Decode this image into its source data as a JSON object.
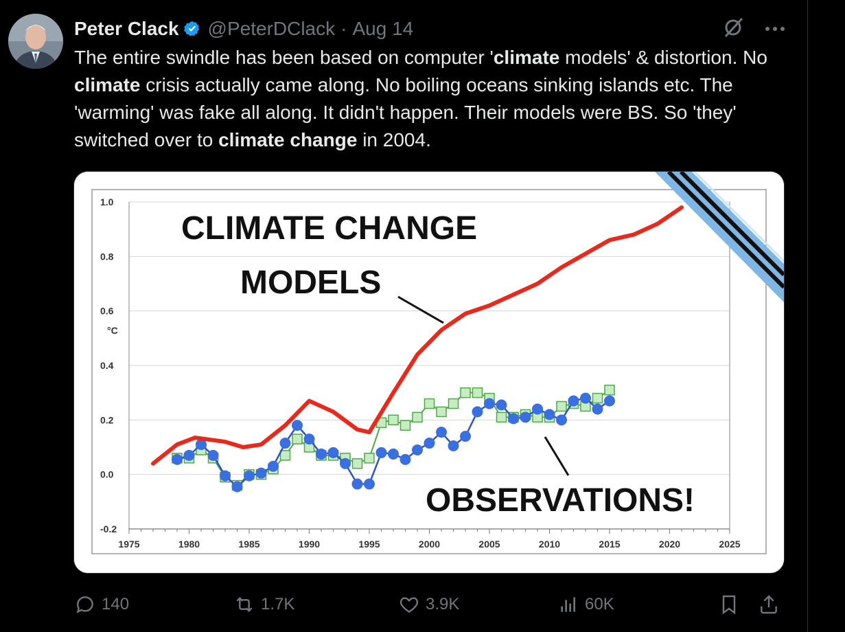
{
  "tweet": {
    "author_name": "Peter Clack",
    "handle": "@PeterDClack",
    "separator": "·",
    "date": "Aug 14",
    "text_parts": [
      {
        "t": "The entire swindle has been based on computer '",
        "b": false
      },
      {
        "t": "climate",
        "b": true
      },
      {
        "t": " models' & distortion. No ",
        "b": false
      },
      {
        "t": "climate",
        "b": true
      },
      {
        "t": " crisis actually came along. No boiling oceans sinking islands etc. The 'warming' was fake all along. It didn't happen. Their models were BS. So 'they' switched over to ",
        "b": false
      },
      {
        "t": "climate change",
        "b": true
      },
      {
        "t": " in 2004.",
        "b": false
      }
    ],
    "icons": {
      "verified": "verified-badge-icon",
      "grok": "grok-icon",
      "more": "more-icon"
    }
  },
  "actions": {
    "replies": "140",
    "reposts": "1.7K",
    "likes": "3.9K",
    "views": "60K"
  },
  "chart_data": {
    "type": "line",
    "title": "CLIMATE CHANGE MODELS",
    "annotation": "OBSERVATIONS!",
    "ylabel": "°C",
    "xlim": [
      1975,
      2025
    ],
    "ylim": [
      -0.2,
      1.0
    ],
    "x_ticks": [
      "1975",
      "1980",
      "1985",
      "1990",
      "1995",
      "2000",
      "2005",
      "2010",
      "2015",
      "2020",
      "2025"
    ],
    "y_ticks": [
      "1.0",
      "0.8",
      "0.6",
      "0.4",
      "0.2",
      "0.0",
      "-0.2"
    ],
    "series": [
      {
        "color": "#e8291c",
        "style": "line",
        "x": [
          1977,
          1979,
          1980.5,
          1983,
          1984.5,
          1986,
          1988,
          1990,
          1992,
          1994,
          1995,
          1997,
          1999,
          2001,
          2003,
          2005,
          2007,
          2009,
          2011,
          2013,
          2015,
          2017,
          2019,
          2021
        ],
        "y": [
          0.04,
          0.11,
          0.135,
          0.12,
          0.1,
          0.11,
          0.18,
          0.27,
          0.23,
          0.165,
          0.155,
          0.3,
          0.44,
          0.53,
          0.59,
          0.62,
          0.66,
          0.7,
          0.76,
          0.81,
          0.86,
          0.88,
          0.92,
          0.98
        ]
      },
      {
        "color": "#3a6fe0",
        "style": "dots",
        "x": [
          1979,
          1980,
          1981,
          1982,
          1983,
          1984,
          1985,
          1986,
          1987,
          1988,
          1989,
          1990,
          1991,
          1992,
          1993,
          1994,
          1995,
          1996,
          1997,
          1998,
          1999,
          2000,
          2001,
          2002,
          2003,
          2004,
          2005,
          2006,
          2007,
          2008,
          2009,
          2010,
          2011,
          2012,
          2013,
          2014,
          2015
        ],
        "y": [
          0.055,
          0.07,
          0.11,
          0.07,
          -0.005,
          -0.045,
          -0.005,
          0.005,
          0.03,
          0.115,
          0.18,
          0.13,
          0.075,
          0.08,
          0.04,
          -0.035,
          -0.035,
          0.08,
          0.075,
          0.055,
          0.09,
          0.115,
          0.155,
          0.105,
          0.14,
          0.23,
          0.26,
          0.255,
          0.205,
          0.21,
          0.24,
          0.22,
          0.2,
          0.27,
          0.28,
          0.24,
          0.27
        ]
      },
      {
        "color": "#4fa84a",
        "style": "squares",
        "x": [
          1979,
          1980,
          1981,
          1982,
          1983,
          1984,
          1985,
          1986,
          1987,
          1988,
          1989,
          1990,
          1991,
          1992,
          1993,
          1994,
          1995,
          1996,
          1997,
          1998,
          1999,
          2000,
          2001,
          2002,
          2003,
          2004,
          2005,
          2006,
          2007,
          2008,
          2009,
          2010,
          2011,
          2012,
          2013,
          2014,
          2015
        ],
        "y": [
          0.06,
          0.06,
          0.09,
          0.06,
          -0.01,
          -0.04,
          0.0,
          0.0,
          0.02,
          0.07,
          0.13,
          0.1,
          0.07,
          0.07,
          0.06,
          0.04,
          0.06,
          0.19,
          0.2,
          0.18,
          0.21,
          0.26,
          0.23,
          0.26,
          0.3,
          0.3,
          0.28,
          0.21,
          0.21,
          0.22,
          0.21,
          0.21,
          0.25,
          0.26,
          0.25,
          0.28,
          0.31
        ]
      }
    ]
  }
}
